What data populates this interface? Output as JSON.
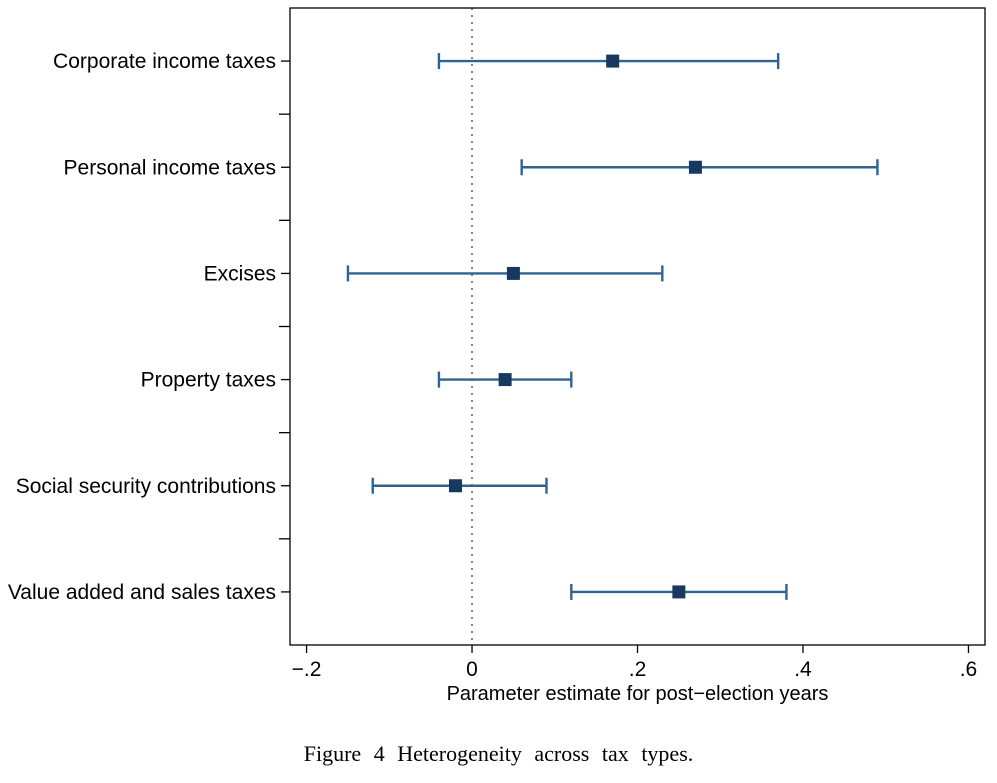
{
  "figure": {
    "caption": "Figure 4 Heterogeneity across tax types."
  },
  "chart_data": {
    "type": "scatter",
    "subtype": "coefficient-plot-with-confidence-intervals",
    "title": "",
    "xlabel": "Parameter estimate for post−election years",
    "ylabel": "",
    "xlim": [
      -0.22,
      0.62
    ],
    "x_ticks": [
      -0.2,
      0,
      0.2,
      0.4,
      0.6
    ],
    "x_tick_labels": [
      "−.2",
      "0",
      ".2",
      ".4",
      ".6"
    ],
    "zero_line": 0,
    "grid": false,
    "legend": "none",
    "categories": [
      "Corporate income taxes",
      "Personal income taxes",
      "Excises",
      "Property taxes",
      "Social security contributions",
      "Value added and sales taxes"
    ],
    "estimates": [
      0.17,
      0.27,
      0.05,
      0.04,
      -0.02,
      0.25
    ],
    "ci_low": [
      -0.04,
      0.06,
      -0.15,
      -0.04,
      -0.12,
      0.12
    ],
    "ci_high": [
      0.37,
      0.49,
      0.23,
      0.12,
      0.09,
      0.38
    ],
    "colors": {
      "marker": "#17395f",
      "line": "#2e6493",
      "zero_line": "#848484",
      "axis": "#000000",
      "background": "#ffffff"
    }
  }
}
